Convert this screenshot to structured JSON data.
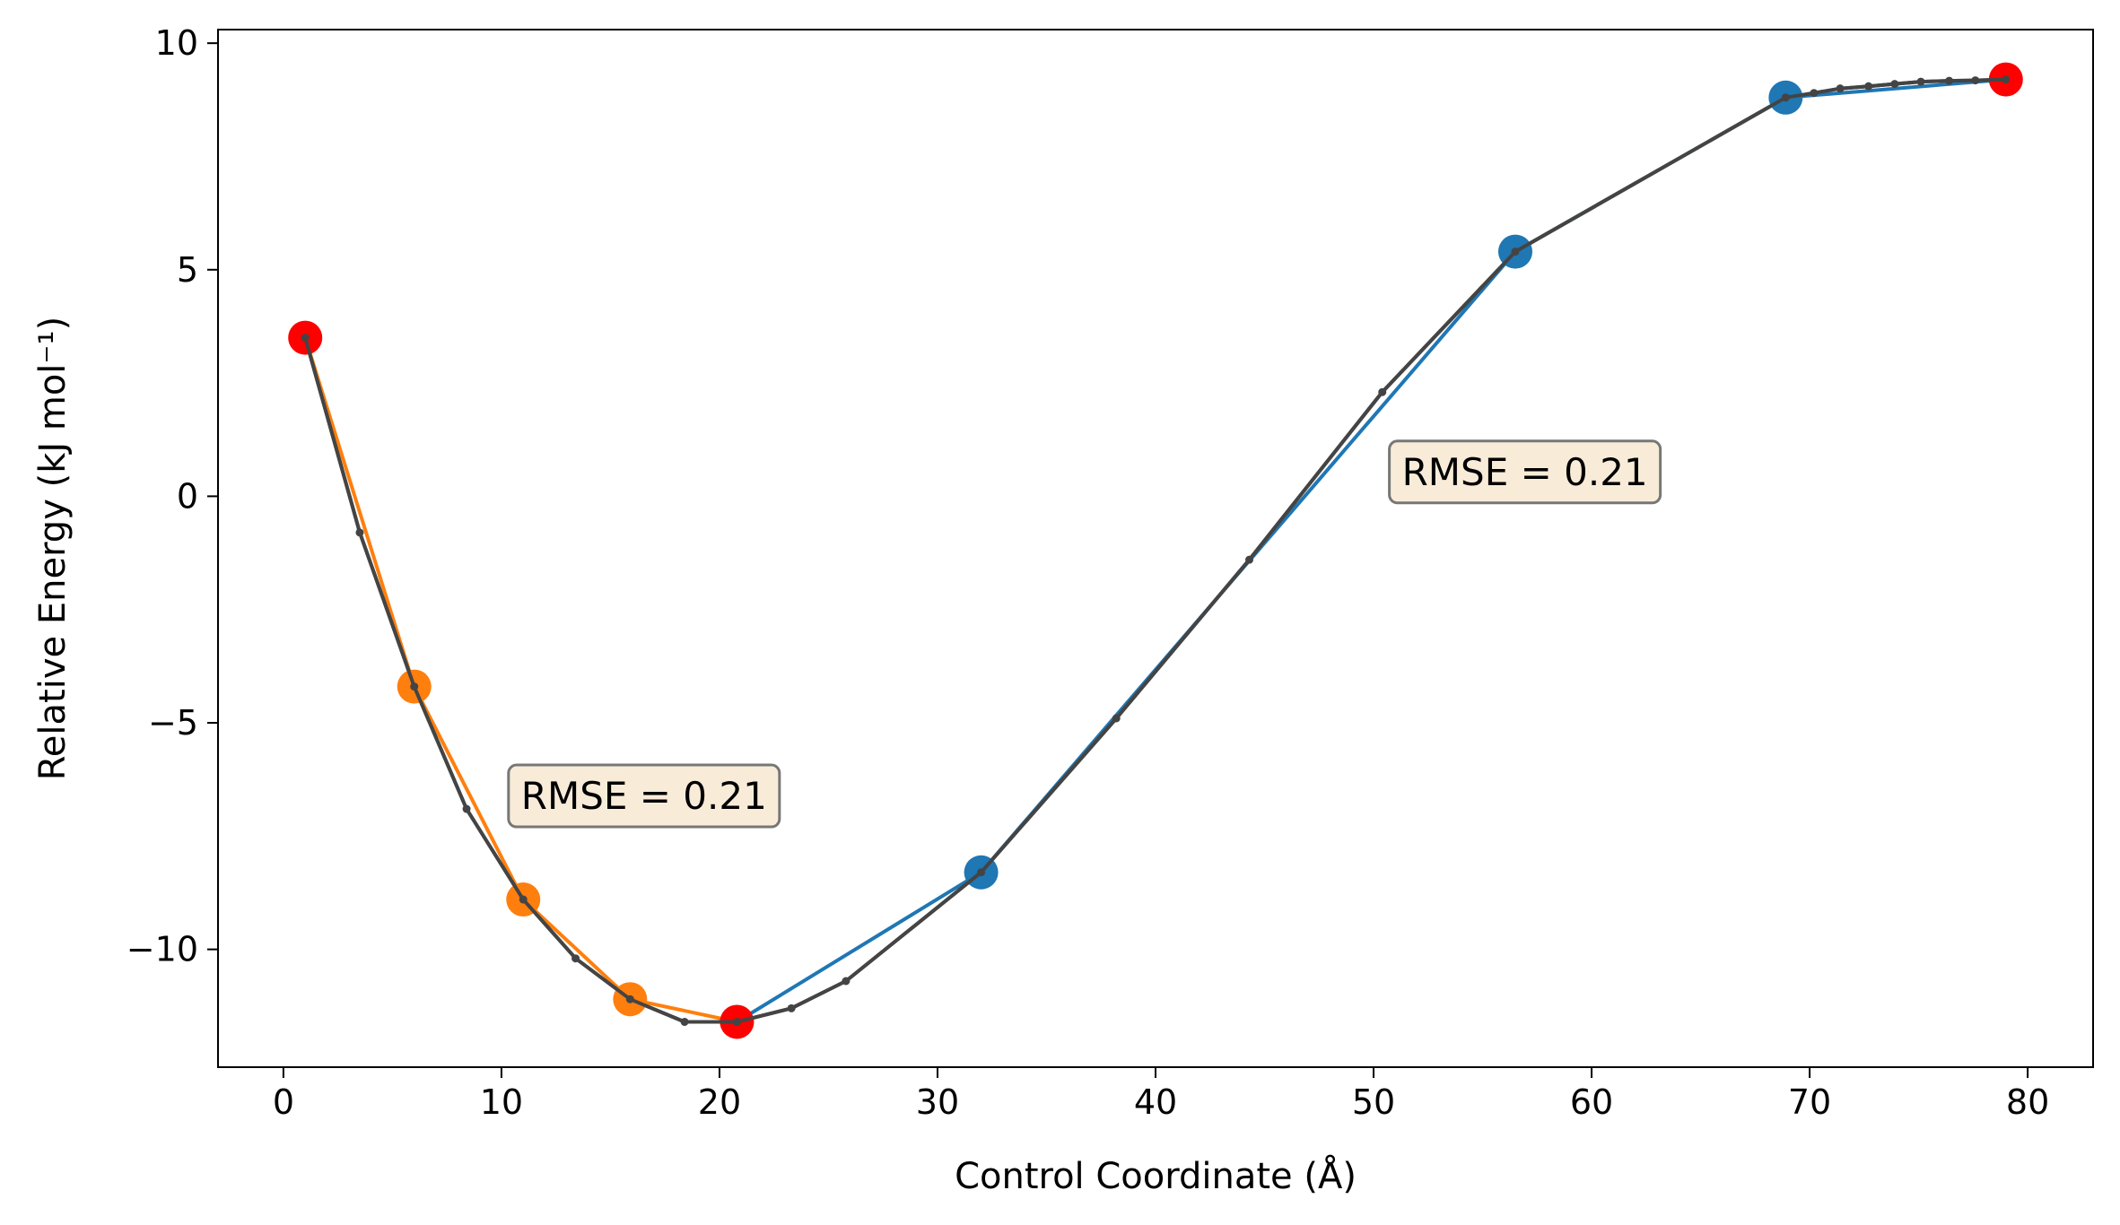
{
  "chart_data": {
    "type": "line",
    "title": "",
    "xlabel": "Control Coordinate (Å)",
    "ylabel": "Relative Energy (kJ mol⁻¹)",
    "xlim": [
      -3,
      83
    ],
    "ylim": [
      -12.6,
      10.3
    ],
    "xticks": [
      0,
      10,
      20,
      30,
      40,
      50,
      60,
      70,
      80
    ],
    "xtick_labels": [
      "0",
      "10",
      "20",
      "30",
      "40",
      "50",
      "60",
      "70",
      "80"
    ],
    "yticks": [
      -10,
      -5,
      0,
      5,
      10
    ],
    "ytick_labels": [
      "−10",
      "−5",
      "0",
      "5",
      "10"
    ],
    "grid": false,
    "legend": "none",
    "series": [
      {
        "role": "orange-segment",
        "color": "#ff7f0e",
        "x": [
          1.0,
          6.0,
          11.0,
          15.9,
          20.8
        ],
        "y": [
          3.5,
          -4.2,
          -8.9,
          -11.1,
          -11.6
        ]
      },
      {
        "role": "blue-segment",
        "color": "#1f77b4",
        "x": [
          20.8,
          32.0,
          56.5,
          68.9,
          79.0
        ],
        "y": [
          -11.6,
          -8.3,
          5.4,
          8.8,
          9.2
        ]
      },
      {
        "role": "fitted-curve",
        "color": "#444444",
        "x": [
          1.0,
          3.5,
          6.0,
          8.4,
          11.0,
          13.4,
          15.9,
          18.4,
          20.8,
          23.3,
          25.8,
          32.0,
          38.2,
          44.3,
          50.4,
          56.5,
          68.9,
          70.2,
          71.4,
          72.7,
          73.9,
          75.1,
          76.4,
          77.6,
          79.0
        ],
        "y": [
          3.5,
          -0.8,
          -4.2,
          -6.9,
          -8.9,
          -10.2,
          -11.1,
          -11.6,
          -11.6,
          -11.3,
          -10.7,
          -8.3,
          -4.9,
          -1.4,
          2.3,
          5.4,
          8.8,
          8.9,
          9.0,
          9.05,
          9.1,
          9.15,
          9.17,
          9.18,
          9.2
        ]
      }
    ],
    "markers": {
      "endpoints": {
        "color": "#ff0000",
        "points": [
          [
            1.0,
            3.5
          ],
          [
            20.8,
            -11.6
          ],
          [
            79.0,
            9.2
          ]
        ]
      },
      "orange": {
        "color": "#ff7f0e",
        "points": [
          [
            6.0,
            -4.2
          ],
          [
            11.0,
            -8.9
          ],
          [
            15.9,
            -11.1
          ]
        ]
      },
      "blue": {
        "color": "#1f77b4",
        "points": [
          [
            32.0,
            -8.3
          ],
          [
            56.5,
            5.4
          ],
          [
            68.9,
            8.8
          ]
        ]
      }
    },
    "annotations": [
      {
        "text": "RMSE = 0.21",
        "x": 10.9,
        "y": -6.9
      },
      {
        "text": "RMSE = 0.21",
        "x": 51.3,
        "y": 0.25
      }
    ],
    "annotation_style": {
      "fill": "#f8ecd9",
      "stroke": "#777777"
    }
  }
}
